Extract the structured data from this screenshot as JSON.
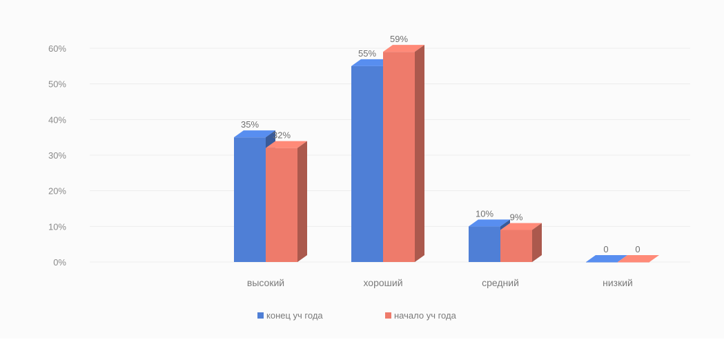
{
  "chart_data": {
    "type": "bar",
    "categories": [
      "высокий",
      "хороший",
      "средний",
      "низкий"
    ],
    "series": [
      {
        "name": "конец уч года",
        "values": [
          35,
          55,
          10,
          0
        ],
        "value_labels": [
          "35%",
          "55%",
          "10%",
          "0"
        ],
        "color": "#4f7fd6"
      },
      {
        "name": "начало уч года",
        "values": [
          32,
          59,
          9,
          0
        ],
        "value_labels": [
          "32%",
          "59%",
          "9%",
          "0"
        ],
        "color": "#ee7b6b"
      }
    ],
    "y_ticks": [
      "0%",
      "10%",
      "20%",
      "30%",
      "40%",
      "50%",
      "60%"
    ],
    "ylim": [
      0,
      60
    ],
    "grid": true,
    "legend_position": "bottom",
    "style": "3d-clustered-column"
  }
}
